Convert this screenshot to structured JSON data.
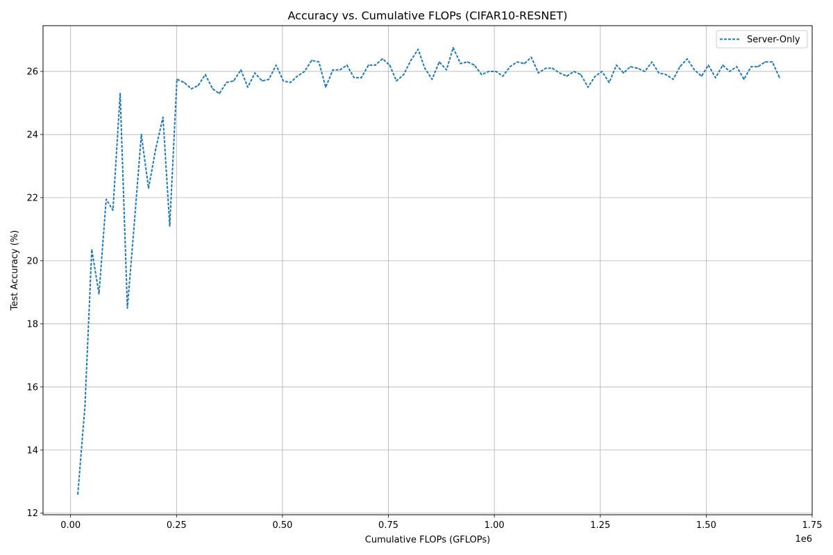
{
  "chart_data": {
    "type": "line",
    "title": "Accuracy vs. Cumulative FLOPs (CIFAR10-RESNET)",
    "xlabel": "Cumulative FLOPs (GFLOPs)",
    "ylabel": "Test Accuracy (%)",
    "x_offset_label": "1e6",
    "xlim": [
      -0.065,
      1.75
    ],
    "ylim": [
      11.95,
      27.45
    ],
    "x_ticks": [
      0.0,
      0.25,
      0.5,
      0.75,
      1.0,
      1.25,
      1.5,
      1.75
    ],
    "x_tick_labels": [
      "0.00",
      "0.25",
      "0.50",
      "0.75",
      "1.00",
      "1.25",
      "1.50",
      "1.75"
    ],
    "y_ticks": [
      12,
      14,
      16,
      18,
      20,
      22,
      24,
      26
    ],
    "y_tick_labels": [
      "12",
      "14",
      "16",
      "18",
      "20",
      "22",
      "24",
      "26"
    ],
    "grid": true,
    "legend_position": "top-right",
    "series": [
      {
        "name": "Server-Only",
        "color": "#1f77b4",
        "line_style": "dashed",
        "x": [
          0.017,
          0.034,
          0.05,
          0.067,
          0.084,
          0.1,
          0.117,
          0.134,
          0.151,
          0.167,
          0.184,
          0.201,
          0.218,
          0.234,
          0.251,
          0.268,
          0.285,
          0.301,
          0.318,
          0.335,
          0.351,
          0.368,
          0.385,
          0.402,
          0.418,
          0.435,
          0.452,
          0.468,
          0.485,
          0.502,
          0.519,
          0.535,
          0.552,
          0.569,
          0.586,
          0.602,
          0.619,
          0.636,
          0.652,
          0.669,
          0.686,
          0.703,
          0.719,
          0.736,
          0.753,
          0.769,
          0.786,
          0.803,
          0.82,
          0.836,
          0.853,
          0.87,
          0.887,
          0.903,
          0.92,
          0.937,
          0.953,
          0.97,
          0.987,
          1.004,
          1.02,
          1.037,
          1.054,
          1.071,
          1.087,
          1.104,
          1.121,
          1.137,
          1.154,
          1.171,
          1.188,
          1.204,
          1.221,
          1.238,
          1.254,
          1.271,
          1.288,
          1.305,
          1.321,
          1.338,
          1.355,
          1.372,
          1.388,
          1.405,
          1.422,
          1.438,
          1.455,
          1.472,
          1.489,
          1.505,
          1.522,
          1.539,
          1.555,
          1.572,
          1.589,
          1.606,
          1.622,
          1.639,
          1.656,
          1.673
        ],
        "values": [
          12.6,
          15.4,
          20.35,
          18.95,
          21.95,
          21.6,
          25.3,
          18.5,
          21.3,
          24.0,
          22.3,
          23.55,
          24.55,
          21.1,
          25.75,
          25.65,
          25.45,
          25.55,
          25.9,
          25.45,
          25.3,
          25.65,
          25.7,
          26.05,
          25.5,
          25.95,
          25.7,
          25.75,
          26.2,
          25.7,
          25.65,
          25.85,
          26.0,
          26.35,
          26.3,
          25.5,
          26.05,
          26.05,
          26.2,
          25.8,
          25.8,
          26.2,
          26.2,
          26.4,
          26.2,
          25.7,
          25.9,
          26.35,
          26.7,
          26.1,
          25.75,
          26.3,
          26.05,
          26.75,
          26.25,
          26.3,
          26.2,
          25.9,
          26.0,
          26.0,
          25.85,
          26.15,
          26.3,
          26.25,
          26.45,
          25.95,
          26.1,
          26.1,
          25.95,
          25.85,
          26.0,
          25.9,
          25.5,
          25.85,
          26.0,
          25.65,
          26.2,
          25.95,
          26.15,
          26.1,
          26.0,
          26.3,
          25.95,
          25.9,
          25.75,
          26.15,
          26.4,
          26.05,
          25.85,
          26.2,
          25.8,
          26.2,
          26.0,
          26.15,
          25.75,
          26.15,
          26.15,
          26.3,
          26.3,
          25.8
        ]
      }
    ]
  }
}
